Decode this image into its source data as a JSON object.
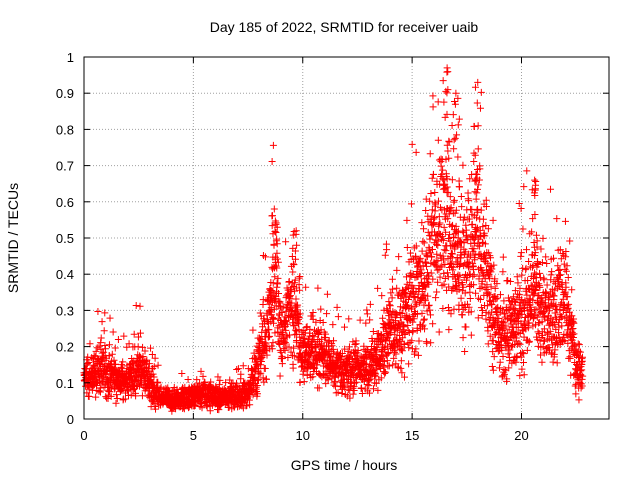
{
  "chart_data": {
    "type": "scatter",
    "title": "Day 185 of 2022, SRMTID for receiver uaib",
    "xlabel": "GPS time / hours",
    "ylabel": "SRMTID / TECUs",
    "xlim": [
      0,
      24
    ],
    "ylim": [
      0,
      1
    ],
    "x_ticks": [
      0,
      5,
      10,
      15,
      20
    ],
    "y_ticks": [
      0,
      0.1,
      0.2,
      0.3,
      0.4,
      0.5,
      0.6,
      0.7,
      0.8,
      0.9,
      1
    ],
    "grid": true,
    "marker": "+",
    "marker_color": "#ff0000",
    "series_profile": [
      {
        "x": 0.0,
        "y": 0.11
      },
      {
        "x": 0.5,
        "y": 0.13
      },
      {
        "x": 1.0,
        "y": 0.13
      },
      {
        "x": 1.5,
        "y": 0.11
      },
      {
        "x": 2.0,
        "y": 0.1
      },
      {
        "x": 2.5,
        "y": 0.15
      },
      {
        "x": 3.0,
        "y": 0.09
      },
      {
        "x": 3.5,
        "y": 0.06
      },
      {
        "x": 4.0,
        "y": 0.05
      },
      {
        "x": 4.5,
        "y": 0.06
      },
      {
        "x": 5.0,
        "y": 0.06
      },
      {
        "x": 5.5,
        "y": 0.07
      },
      {
        "x": 6.0,
        "y": 0.06
      },
      {
        "x": 6.5,
        "y": 0.06
      },
      {
        "x": 7.0,
        "y": 0.06
      },
      {
        "x": 7.5,
        "y": 0.07
      },
      {
        "x": 8.0,
        "y": 0.17
      },
      {
        "x": 8.5,
        "y": 0.28
      },
      {
        "x": 8.8,
        "y": 0.4
      },
      {
        "x": 9.0,
        "y": 0.22
      },
      {
        "x": 9.5,
        "y": 0.33
      },
      {
        "x": 10.0,
        "y": 0.16
      },
      {
        "x": 10.5,
        "y": 0.2
      },
      {
        "x": 11.0,
        "y": 0.17
      },
      {
        "x": 11.5,
        "y": 0.14
      },
      {
        "x": 12.0,
        "y": 0.13
      },
      {
        "x": 12.5,
        "y": 0.14
      },
      {
        "x": 13.0,
        "y": 0.13
      },
      {
        "x": 13.5,
        "y": 0.18
      },
      {
        "x": 14.0,
        "y": 0.24
      },
      {
        "x": 14.5,
        "y": 0.26
      },
      {
        "x": 15.0,
        "y": 0.33
      },
      {
        "x": 15.5,
        "y": 0.38
      },
      {
        "x": 16.0,
        "y": 0.45
      },
      {
        "x": 16.5,
        "y": 0.55
      },
      {
        "x": 17.0,
        "y": 0.45
      },
      {
        "x": 17.5,
        "y": 0.42
      },
      {
        "x": 18.0,
        "y": 0.55
      },
      {
        "x": 18.5,
        "y": 0.35
      },
      {
        "x": 19.0,
        "y": 0.22
      },
      {
        "x": 19.5,
        "y": 0.25
      },
      {
        "x": 20.0,
        "y": 0.27
      },
      {
        "x": 20.5,
        "y": 0.35
      },
      {
        "x": 21.0,
        "y": 0.3
      },
      {
        "x": 21.5,
        "y": 0.3
      },
      {
        "x": 22.0,
        "y": 0.32
      },
      {
        "x": 22.5,
        "y": 0.15
      },
      {
        "x": 22.8,
        "y": 0.12
      }
    ],
    "notable_peaks": [
      {
        "x": 8.7,
        "y": 0.58
      },
      {
        "x": 9.7,
        "y": 0.52
      },
      {
        "x": 16.6,
        "y": 0.97
      },
      {
        "x": 17.0,
        "y": 0.9
      },
      {
        "x": 18.0,
        "y": 0.93
      },
      {
        "x": 20.6,
        "y": 0.66
      }
    ]
  }
}
